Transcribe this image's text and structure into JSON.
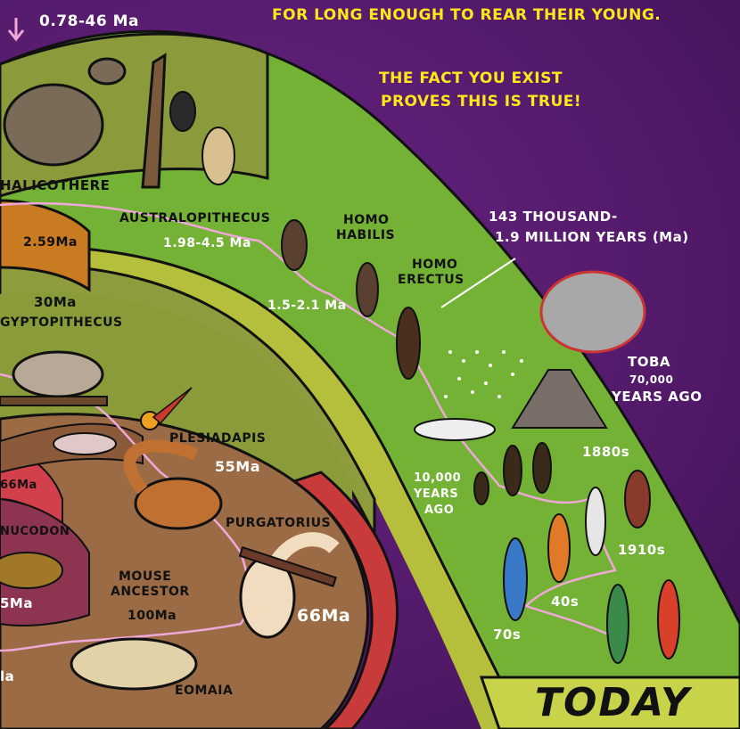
{
  "header": {
    "range_top_left": "0.78-46 Ma",
    "caption_line1": "FOR LONG ENOUGH TO REAR THEIR YOUNG.",
    "caption_line2": "THE FACT YOU EXIST",
    "caption_line3": "PROVES THIS IS TRUE!"
  },
  "labels": {
    "chalicothere": "HALICOTHERE",
    "age_2_59": "2.59Ma",
    "age_30": "30Ma",
    "aegyptopithecus": "GYPTOPITHECUS",
    "australopithecus": "AUSTRALOPITHECUS",
    "australopithecus_range": "1.98-4.5 Ma",
    "homo_habilis_1": "HOMO",
    "homo_habilis_2": "HABILIS",
    "homo_habilis_range": "1.5-2.1 Ma",
    "homo_erectus_1": "HOMO",
    "homo_erectus_2": "ERECTUS",
    "sapiens_range_1": "143 THOUSAND-",
    "sapiens_range_2": "1.9 MILLION YEARS (Ma)",
    "toba_1": "TOBA",
    "toba_2": "70,000",
    "toba_3": "YEARS AGO",
    "ten_thousand_1": "10,000",
    "ten_thousand_2": "YEARS",
    "ten_thousand_3": "AGO",
    "decade_1880": "1880s",
    "decade_1910": "1910s",
    "decade_40": "40s",
    "decade_70": "70s",
    "plesiadapis": "PLESIADAPIS",
    "age_55": "55Ma",
    "purgatorius": "PURGATORIUS",
    "age_66_left": "66Ma",
    "oxyaenid": "NUCODON",
    "age_5_left": "5Ma",
    "mouse_ancestor_1": "MOUSE",
    "mouse_ancestor_2": "ANCESTOR",
    "age_100": "100Ma",
    "age_66": "66Ma",
    "eomaia": "EOMAIA",
    "age_a": "la",
    "today": "TODAY"
  },
  "colors": {
    "background": "#5a1c70",
    "band_green": "#7ab83a",
    "band_olive": "#8e9a3c",
    "band_yellow": "#c7cf45",
    "band_orange": "#c77a22",
    "band_brown": "#9a6a44",
    "band_red": "#c83a3a",
    "caption_yellow": "#ffe81a",
    "lineage_pink": "#f0a8d8"
  }
}
